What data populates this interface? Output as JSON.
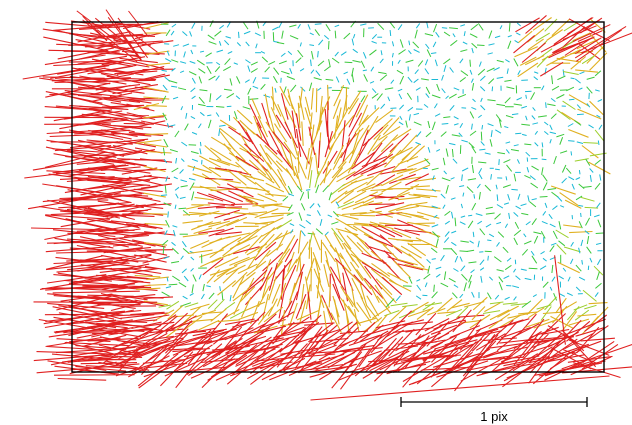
{
  "chart_data": {
    "type": "vector-field",
    "scale_bar_label": "1 pix",
    "scale_bar_value": 1,
    "colors": {
      "low": "#19b9d6",
      "mid_low": "#3cc83c",
      "mid": "#9ccf2c",
      "mid_high": "#e0b020",
      "high": "#e02020",
      "frame": "#000000"
    }
  }
}
